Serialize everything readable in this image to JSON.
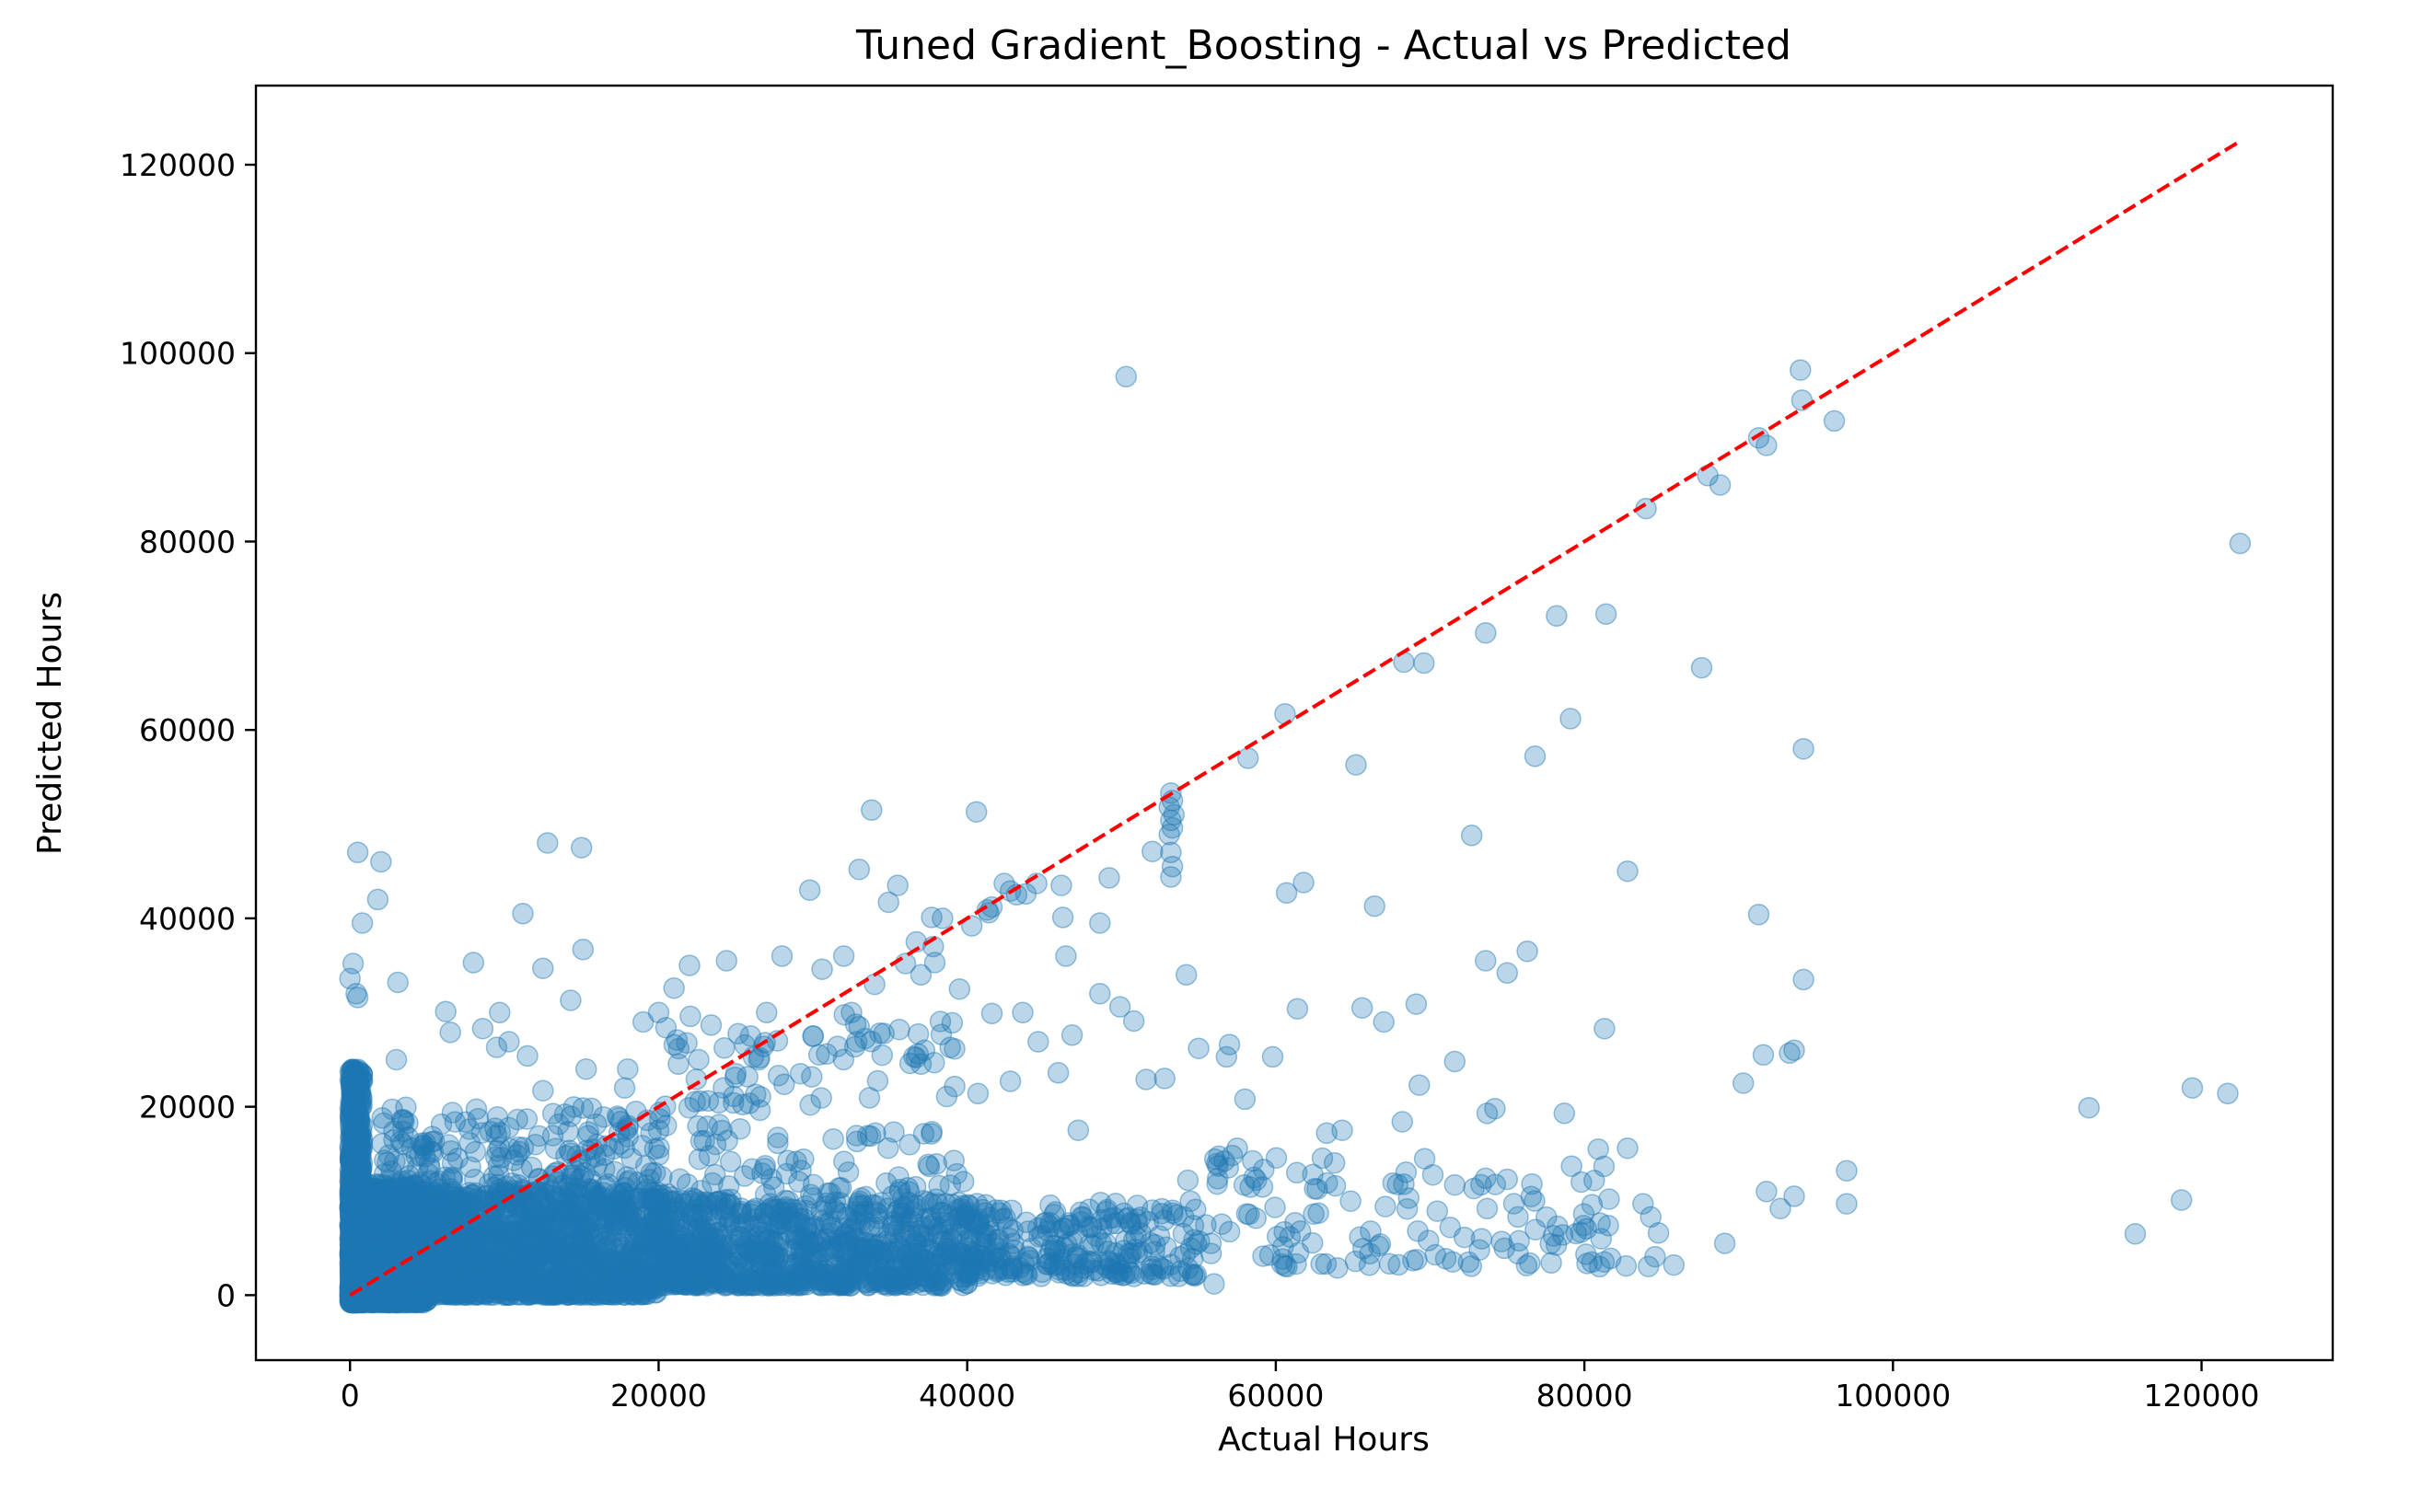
{
  "chart_data": {
    "type": "scatter",
    "title": "Tuned Gradient_Boosting - Actual vs Predicted",
    "xlabel": "Actual Hours",
    "ylabel": "Predicted Hours",
    "xlim": [
      -6100,
      128500
    ],
    "ylim": [
      -6900,
      128400
    ],
    "xticks": [
      "0",
      "20000",
      "40000",
      "60000",
      "80000",
      "100000",
      "120000"
    ],
    "yticks": [
      "0",
      "20000",
      "40000",
      "60000",
      "80000",
      "100000",
      "120000"
    ],
    "grid": false,
    "legend": "none",
    "point_color": "#1f77b4",
    "point_alpha": 0.3,
    "reference_line": {
      "style": "dashed",
      "color": "#ff0000",
      "from": [
        0,
        0
      ],
      "to": [
        122500,
        122500
      ]
    },
    "clusters": [
      {
        "x": [
          0,
          800
        ],
        "y": [
          -800,
          24000
        ],
        "n": 900
      },
      {
        "x": [
          0,
          5000
        ],
        "y": [
          -800,
          12000
        ],
        "n": 1300
      },
      {
        "x": [
          5000,
          20000
        ],
        "y": [
          0,
          11000
        ],
        "n": 1300
      },
      {
        "x": [
          20000,
          40000
        ],
        "y": [
          1000,
          10000
        ],
        "n": 900
      },
      {
        "x": [
          40000,
          55000
        ],
        "y": [
          2000,
          10000
        ],
        "n": 260
      },
      {
        "x": [
          2000,
          20000
        ],
        "y": [
          10000,
          20000
        ],
        "n": 260
      },
      {
        "x": [
          20000,
          40000
        ],
        "y": [
          10000,
          30000
        ],
        "n": 160
      },
      {
        "x": [
          55000,
          85000
        ],
        "y": [
          3000,
          15000
        ],
        "n": 110
      }
    ],
    "points": [
      [
        50300,
        97500
      ],
      [
        94000,
        98200
      ],
      [
        94100,
        95000
      ],
      [
        96200,
        92800
      ],
      [
        91300,
        91000
      ],
      [
        91800,
        90200
      ],
      [
        88800,
        86000
      ],
      [
        88000,
        87000
      ],
      [
        84000,
        83500
      ],
      [
        122500,
        79800
      ],
      [
        78200,
        72100
      ],
      [
        81400,
        72300
      ],
      [
        73600,
        70300
      ],
      [
        68300,
        67200
      ],
      [
        69600,
        67100
      ],
      [
        87600,
        66600
      ],
      [
        60600,
        61700
      ],
      [
        79100,
        61200
      ],
      [
        76800,
        57200
      ],
      [
        94200,
        58000
      ],
      [
        58200,
        57000
      ],
      [
        65200,
        56300
      ],
      [
        72700,
        48800
      ],
      [
        82800,
        45000
      ],
      [
        60700,
        42700
      ],
      [
        61800,
        43800
      ],
      [
        66400,
        41300
      ],
      [
        91300,
        40400
      ],
      [
        73600,
        35500
      ],
      [
        75000,
        34200
      ],
      [
        76300,
        36500
      ],
      [
        94200,
        33500
      ],
      [
        61400,
        30400
      ],
      [
        65600,
        30500
      ],
      [
        67000,
        29000
      ],
      [
        69100,
        30900
      ],
      [
        93300,
        25700
      ],
      [
        93600,
        26000
      ],
      [
        91600,
        25500
      ],
      [
        90300,
        22500
      ],
      [
        71600,
        24800
      ],
      [
        69300,
        22300
      ],
      [
        81300,
        28300
      ],
      [
        78700,
        19300
      ],
      [
        73700,
        19300
      ],
      [
        74200,
        19800
      ],
      [
        68200,
        18400
      ],
      [
        112700,
        19900
      ],
      [
        119400,
        22000
      ],
      [
        121700,
        21400
      ],
      [
        97000,
        13200
      ],
      [
        97000,
        9700
      ],
      [
        115700,
        6500
      ],
      [
        118700,
        10100
      ],
      [
        91800,
        11000
      ],
      [
        93600,
        10500
      ],
      [
        92700,
        9200
      ],
      [
        89100,
        5500
      ],
      [
        85800,
        3200
      ],
      [
        84800,
        6600
      ],
      [
        84300,
        8300
      ],
      [
        83800,
        9700
      ],
      [
        82800,
        15600
      ],
      [
        80900,
        15500
      ],
      [
        80500,
        9600
      ],
      [
        81600,
        10200
      ],
      [
        79800,
        12000
      ],
      [
        78600,
        6400
      ],
      [
        78000,
        6300
      ],
      [
        82700,
        3100
      ],
      [
        81700,
        3900
      ],
      [
        76600,
        11800
      ],
      [
        75700,
        8300
      ],
      [
        75700,
        4400
      ],
      [
        75000,
        12300
      ],
      [
        73200,
        4800
      ],
      [
        73600,
        12400
      ],
      [
        71600,
        11700
      ],
      [
        71300,
        7200
      ],
      [
        69200,
        6800
      ],
      [
        69900,
        5800
      ],
      [
        67600,
        11900
      ],
      [
        67100,
        9400
      ],
      [
        66100,
        4400
      ],
      [
        64000,
        2900
      ],
      [
        64300,
        17500
      ],
      [
        63300,
        17200
      ],
      [
        62400,
        12800
      ],
      [
        61600,
        6800
      ],
      [
        60400,
        3300
      ],
      [
        60600,
        3100
      ],
      [
        59800,
        25300
      ],
      [
        58000,
        20800
      ],
      [
        57000,
        26600
      ],
      [
        56800,
        25300
      ],
      [
        55000,
        26200
      ],
      [
        54200,
        34000
      ],
      [
        52800,
        23000
      ],
      [
        51600,
        22900
      ],
      [
        50800,
        29100
      ],
      [
        49900,
        30600
      ],
      [
        48600,
        32000
      ],
      [
        46800,
        27600
      ],
      [
        46400,
        36000
      ],
      [
        47200,
        17500
      ],
      [
        44500,
        43700
      ],
      [
        43800,
        42600
      ],
      [
        42400,
        43700
      ],
      [
        46100,
        43500
      ],
      [
        46200,
        40100
      ],
      [
        48600,
        39500
      ],
      [
        49200,
        44300
      ],
      [
        40600,
        51300
      ],
      [
        33800,
        51500
      ],
      [
        33000,
        45200
      ],
      [
        35500,
        43500
      ],
      [
        34900,
        41700
      ],
      [
        40300,
        39200
      ],
      [
        38400,
        40000
      ],
      [
        37700,
        40100
      ],
      [
        29800,
        43000
      ],
      [
        30600,
        34600
      ],
      [
        32000,
        36000
      ],
      [
        32500,
        30000
      ],
      [
        34000,
        33000
      ],
      [
        28000,
        36000
      ],
      [
        27000,
        30000
      ],
      [
        22000,
        35000
      ],
      [
        24400,
        35500
      ],
      [
        21000,
        32600
      ],
      [
        20000,
        30000
      ],
      [
        19000,
        29000
      ],
      [
        15000,
        47500
      ],
      [
        12800,
        48000
      ],
      [
        2000,
        46000
      ],
      [
        500,
        47000
      ],
      [
        1800,
        42000
      ],
      [
        800,
        39500
      ],
      [
        11200,
        40500
      ],
      [
        15100,
        36700
      ],
      [
        12500,
        34700
      ],
      [
        8000,
        35300
      ],
      [
        3100,
        33200
      ],
      [
        200,
        35200
      ],
      [
        0,
        33600
      ],
      [
        400,
        32000
      ],
      [
        500,
        31600
      ],
      [
        14300,
        31300
      ],
      [
        9700,
        30000
      ],
      [
        6200,
        30100
      ],
      [
        8600,
        28300
      ],
      [
        6500,
        27900
      ],
      [
        3000,
        25000
      ],
      [
        9500,
        26300
      ],
      [
        10300,
        26900
      ],
      [
        11500,
        25400
      ],
      [
        12500,
        21700
      ],
      [
        15300,
        24000
      ],
      [
        17800,
        22000
      ],
      [
        18000,
        24000
      ],
      [
        22600,
        25000
      ],
      [
        24200,
        22000
      ],
      [
        26800,
        26400
      ],
      [
        26900,
        26800
      ],
      [
        27700,
        27000
      ],
      [
        25000,
        23500
      ],
      [
        30000,
        27500
      ],
      [
        31600,
        26400
      ],
      [
        33000,
        28500
      ],
      [
        35600,
        28200
      ],
      [
        36300,
        24600
      ],
      [
        38900,
        26300
      ],
      [
        40700,
        21400
      ],
      [
        42800,
        22700
      ],
      [
        44600,
        26900
      ],
      [
        45900,
        23600
      ],
      [
        43600,
        30000
      ],
      [
        41600,
        29900
      ],
      [
        39500,
        32500
      ],
      [
        36000,
        35200
      ],
      [
        37000,
        34000
      ],
      [
        37900,
        35300
      ],
      [
        36700,
        37500
      ],
      [
        37800,
        37000
      ],
      [
        53200,
        53300
      ],
      [
        53300,
        52500
      ],
      [
        53100,
        51800
      ],
      [
        53400,
        51000
      ],
      [
        53200,
        50400
      ],
      [
        53300,
        49600
      ],
      [
        53100,
        48900
      ],
      [
        53200,
        47000
      ],
      [
        53300,
        45500
      ],
      [
        53200,
        44400
      ],
      [
        52000,
        47100
      ],
      [
        41300,
        40900
      ],
      [
        41600,
        41200
      ],
      [
        41400,
        40600
      ],
      [
        42800,
        42900
      ],
      [
        43200,
        42500
      ],
      [
        20000,
        17500
      ],
      [
        19500,
        17200
      ],
      [
        20500,
        18000
      ],
      [
        18000,
        18000
      ],
      [
        16000,
        16000
      ],
      [
        14000,
        14800
      ],
      [
        10000,
        11000
      ],
      [
        57500,
        15600
      ],
      [
        56200,
        11800
      ],
      [
        54300,
        12200
      ],
      [
        58600,
        12500
      ],
      [
        55800,
        5500
      ],
      [
        56000,
        1200
      ],
      [
        52400,
        3100
      ],
      [
        50500,
        2500
      ],
      [
        49800,
        3200
      ]
    ]
  }
}
